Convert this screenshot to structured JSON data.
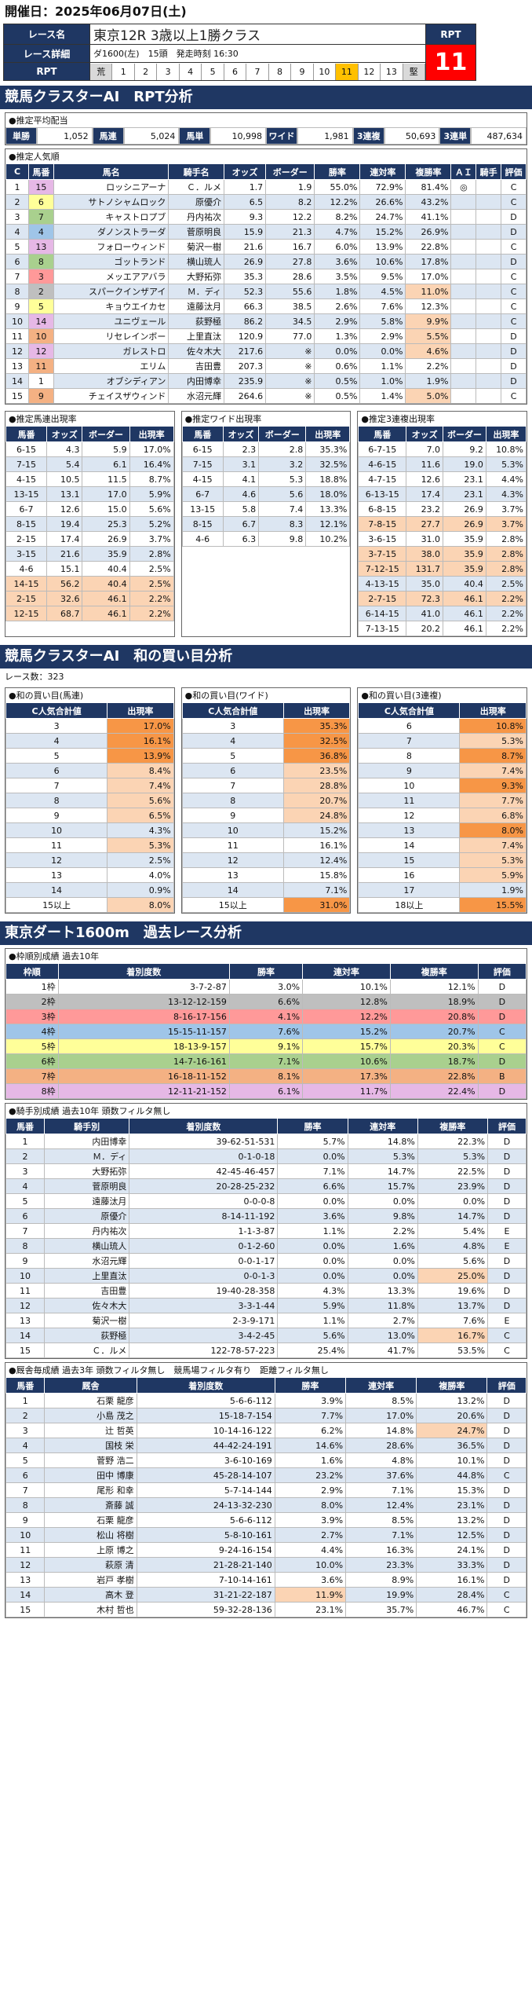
{
  "header": {
    "date_label": "開催日：2025年06月07日(土)"
  },
  "race": {
    "name_label": "レース名",
    "name": "東京12R 3歳以上1勝クラス",
    "detail_label": "レース詳細",
    "detail": "ダ1600(左)　15頭　発走時刻 16:30",
    "rpt_label": "RPT",
    "rpt_value": "11",
    "rpt_head": "RPT",
    "numbers": [
      "荒",
      "1",
      "2",
      "3",
      "4",
      "5",
      "6",
      "7",
      "8",
      "9",
      "10",
      "11",
      "12",
      "13",
      "堅"
    ],
    "selected_number": "11"
  },
  "rpt_section": {
    "title": "競馬クラスターAI　RPT分析",
    "payout_title": "●推定平均配当",
    "payouts": [
      {
        "k": "単勝",
        "v": "1,052"
      },
      {
        "k": "馬連",
        "v": "5,024"
      },
      {
        "k": "馬単",
        "v": "10,998"
      },
      {
        "k": "ワイド",
        "v": "1,981"
      },
      {
        "k": "3連複",
        "v": "50,693"
      },
      {
        "k": "3連単",
        "v": "487,634"
      }
    ],
    "popular_title": "●推定人気順",
    "popular_headers": [
      "C",
      "馬番",
      "馬名",
      "騎手名",
      "オッズ",
      "ボーダー",
      "勝率",
      "連対率",
      "複勝率",
      "ＡＩ",
      "騎手",
      "評価"
    ],
    "popular_rows": [
      [
        "1",
        "15",
        "ロッシニアーナ",
        "Ｃ．ルメ",
        "1.7",
        "1.9",
        "55.0%",
        "72.9%",
        "81.4%",
        "◎",
        "",
        "C"
      ],
      [
        "2",
        "6",
        "サトノシャムロック",
        "原優介",
        "6.5",
        "8.2",
        "12.2%",
        "26.6%",
        "43.2%",
        "",
        "",
        "C"
      ],
      [
        "3",
        "7",
        "キャストロプブ",
        "丹内祐次",
        "9.3",
        "12.2",
        "8.2%",
        "24.7%",
        "41.1%",
        "",
        "",
        "D"
      ],
      [
        "4",
        "4",
        "ダノンストラーダ",
        "菅原明良",
        "15.9",
        "21.3",
        "4.7%",
        "15.2%",
        "26.9%",
        "",
        "",
        "D"
      ],
      [
        "5",
        "13",
        "フォローウィンド",
        "菊沢一樹",
        "21.6",
        "16.7",
        "6.0%",
        "13.9%",
        "22.8%",
        "",
        "",
        "C"
      ],
      [
        "6",
        "8",
        "ゴットランド",
        "横山琉人",
        "26.9",
        "27.8",
        "3.6%",
        "10.6%",
        "17.8%",
        "",
        "",
        "D"
      ],
      [
        "7",
        "3",
        "メッエアアバラ",
        "大野拓弥",
        "35.3",
        "28.6",
        "3.5%",
        "9.5%",
        "17.0%",
        "",
        "",
        "C"
      ],
      [
        "8",
        "2",
        "スパークインザアイ",
        "Ｍ．ディ",
        "52.3",
        "55.6",
        "1.8%",
        "4.5%",
        "11.0%",
        "",
        "",
        "C"
      ],
      [
        "9",
        "5",
        "キョウエイカセ",
        "遠藤汰月",
        "66.3",
        "38.5",
        "2.6%",
        "7.6%",
        "12.3%",
        "",
        "",
        "C"
      ],
      [
        "10",
        "14",
        "ユニヴェール",
        "荻野極",
        "86.2",
        "34.5",
        "2.9%",
        "5.8%",
        "9.9%",
        "",
        "",
        "C"
      ],
      [
        "11",
        "10",
        "リセレインボー",
        "上里直汰",
        "120.9",
        "77.0",
        "1.3%",
        "2.9%",
        "5.5%",
        "",
        "",
        "D"
      ],
      [
        "12",
        "12",
        "ガレストロ",
        "佐々木大",
        "217.6",
        "※",
        "0.0%",
        "0.0%",
        "4.6%",
        "",
        "",
        "D"
      ],
      [
        "13",
        "11",
        "エリム",
        "吉田豊",
        "207.3",
        "※",
        "0.6%",
        "1.1%",
        "2.2%",
        "",
        "",
        "D"
      ],
      [
        "14",
        "1",
        "オブシディアン",
        "内田博幸",
        "235.9",
        "※",
        "0.5%",
        "1.0%",
        "1.9%",
        "",
        "",
        "D"
      ],
      [
        "15",
        "9",
        "チェイスザウィンド",
        "水沼元輝",
        "264.6",
        "※",
        "0.5%",
        "1.4%",
        "5.0%",
        "",
        "",
        "C"
      ]
    ],
    "umaren_title": "●推定馬連出現率",
    "umaren_headers": [
      "馬番",
      "オッズ",
      "ボーダー",
      "出現率"
    ],
    "umaren": [
      [
        "6-15",
        "4.3",
        "5.9",
        "17.0%"
      ],
      [
        "7-15",
        "5.4",
        "6.1",
        "16.4%"
      ],
      [
        "4-15",
        "10.5",
        "11.5",
        "8.7%"
      ],
      [
        "13-15",
        "13.1",
        "17.0",
        "5.9%"
      ],
      [
        "6-7",
        "12.6",
        "15.0",
        "5.6%"
      ],
      [
        "8-15",
        "19.4",
        "25.3",
        "5.2%"
      ],
      [
        "2-15",
        "17.4",
        "26.9",
        "3.7%"
      ],
      [
        "3-15",
        "21.6",
        "35.9",
        "2.8%"
      ],
      [
        "4-6",
        "15.1",
        "40.4",
        "2.5%"
      ],
      [
        "14-15",
        "56.2",
        "40.4",
        "2.5%"
      ],
      [
        "2-15",
        "32.6",
        "46.1",
        "2.2%"
      ],
      [
        "12-15",
        "68.7",
        "46.1",
        "2.2%"
      ]
    ],
    "wide_title": "●推定ワイド出現率",
    "wide_headers": [
      "馬番",
      "オッズ",
      "ボーダー",
      "出現率"
    ],
    "wide": [
      [
        "6-15",
        "2.3",
        "2.8",
        "35.3%"
      ],
      [
        "7-15",
        "3.1",
        "3.2",
        "32.5%"
      ],
      [
        "4-15",
        "4.1",
        "5.3",
        "18.8%"
      ],
      [
        "6-7",
        "4.6",
        "5.6",
        "18.0%"
      ],
      [
        "13-15",
        "5.8",
        "7.4",
        "13.3%"
      ],
      [
        "8-15",
        "6.7",
        "8.3",
        "12.1%"
      ],
      [
        "4-6",
        "6.3",
        "9.8",
        "10.2%"
      ]
    ],
    "trio_title": "●推定3連複出現率",
    "trio_headers": [
      "馬番",
      "オッズ",
      "ボーダー",
      "出現率"
    ],
    "trio": [
      [
        "6-7-15",
        "7.0",
        "9.2",
        "10.8%"
      ],
      [
        "4-6-15",
        "11.6",
        "19.0",
        "5.3%"
      ],
      [
        "4-7-15",
        "12.6",
        "23.1",
        "4.4%"
      ],
      [
        "6-13-15",
        "17.4",
        "23.1",
        "4.3%"
      ],
      [
        "6-8-15",
        "23.2",
        "26.9",
        "3.7%"
      ],
      [
        "7-8-15",
        "27.7",
        "26.9",
        "3.7%"
      ],
      [
        "3-6-15",
        "31.0",
        "35.9",
        "2.8%"
      ],
      [
        "3-7-15",
        "38.0",
        "35.9",
        "2.8%"
      ],
      [
        "7-12-15",
        "131.7",
        "35.9",
        "2.8%"
      ],
      [
        "4-13-15",
        "35.0",
        "40.4",
        "2.5%"
      ],
      [
        "2-7-15",
        "72.3",
        "46.1",
        "2.2%"
      ],
      [
        "6-14-15",
        "41.0",
        "46.1",
        "2.2%"
      ],
      [
        "7-13-15",
        "20.2",
        "46.1",
        "2.2%"
      ]
    ]
  },
  "wa_section": {
    "title": "競馬クラスターAI　和の買い目分析",
    "race_count": "レース数：323",
    "umaren_title": "●和の買い目(馬連)",
    "wide_title": "●和の買い目(ワイド)",
    "trio_title": "●和の買い目(3連複)",
    "col1": "C人気合計値",
    "col2": "出現率",
    "umaren": [
      [
        "3",
        "17.0%"
      ],
      [
        "4",
        "16.1%"
      ],
      [
        "5",
        "13.9%"
      ],
      [
        "6",
        "8.4%"
      ],
      [
        "7",
        "7.4%"
      ],
      [
        "8",
        "5.6%"
      ],
      [
        "9",
        "6.5%"
      ],
      [
        "10",
        "4.3%"
      ],
      [
        "11",
        "5.3%"
      ],
      [
        "12",
        "2.5%"
      ],
      [
        "13",
        "4.0%"
      ],
      [
        "14",
        "0.9%"
      ],
      [
        "15以上",
        "8.0%"
      ]
    ],
    "wide": [
      [
        "3",
        "35.3%"
      ],
      [
        "4",
        "32.5%"
      ],
      [
        "5",
        "36.8%"
      ],
      [
        "6",
        "23.5%"
      ],
      [
        "7",
        "28.8%"
      ],
      [
        "8",
        "20.7%"
      ],
      [
        "9",
        "24.8%"
      ],
      [
        "10",
        "15.2%"
      ],
      [
        "11",
        "16.1%"
      ],
      [
        "12",
        "12.4%"
      ],
      [
        "13",
        "15.8%"
      ],
      [
        "14",
        "7.1%"
      ],
      [
        "15以上",
        "31.0%"
      ]
    ],
    "trio": [
      [
        "6",
        "10.8%"
      ],
      [
        "7",
        "5.3%"
      ],
      [
        "8",
        "8.7%"
      ],
      [
        "9",
        "7.4%"
      ],
      [
        "10",
        "9.3%"
      ],
      [
        "11",
        "7.7%"
      ],
      [
        "12",
        "6.8%"
      ],
      [
        "13",
        "8.0%"
      ],
      [
        "14",
        "7.4%"
      ],
      [
        "15",
        "5.3%"
      ],
      [
        "16",
        "5.9%"
      ],
      [
        "17",
        "1.9%"
      ],
      [
        "18以上",
        "15.5%"
      ]
    ]
  },
  "past_section": {
    "title": "東京ダート1600m　過去レース分析",
    "frame_title": "●枠順別成績 過去10年",
    "frame_headers": [
      "枠順",
      "着別度数",
      "勝率",
      "連対率",
      "複勝率",
      "評価"
    ],
    "frames": [
      [
        "1枠",
        "3-7-2-87",
        "3.0%",
        "10.1%",
        "12.1%",
        "D"
      ],
      [
        "2枠",
        "13-12-12-159",
        "6.6%",
        "12.8%",
        "18.9%",
        "D"
      ],
      [
        "3枠",
        "8-16-17-156",
        "4.1%",
        "12.2%",
        "20.8%",
        "D"
      ],
      [
        "4枠",
        "15-15-11-157",
        "7.6%",
        "15.2%",
        "20.7%",
        "C"
      ],
      [
        "5枠",
        "18-13-9-157",
        "9.1%",
        "15.7%",
        "20.3%",
        "C"
      ],
      [
        "6枠",
        "14-7-16-161",
        "7.1%",
        "10.6%",
        "18.7%",
        "D"
      ],
      [
        "7枠",
        "16-18-11-152",
        "8.1%",
        "17.3%",
        "22.8%",
        "B"
      ],
      [
        "8枠",
        "12-11-21-152",
        "6.1%",
        "11.7%",
        "22.4%",
        "D"
      ]
    ],
    "jockey_title": "●騎手別成績 過去10年 頭数フィルタ無し",
    "jockey_headers": [
      "馬番",
      "騎手別",
      "着別度数",
      "勝率",
      "連対率",
      "複勝率",
      "評価"
    ],
    "jockeys": [
      [
        "1",
        "内田博幸",
        "39-62-51-531",
        "5.7%",
        "14.8%",
        "22.3%",
        "D"
      ],
      [
        "2",
        "Ｍ．ディ",
        "0-1-0-18",
        "0.0%",
        "5.3%",
        "5.3%",
        "D"
      ],
      [
        "3",
        "大野拓弥",
        "42-45-46-457",
        "7.1%",
        "14.7%",
        "22.5%",
        "D"
      ],
      [
        "4",
        "菅原明良",
        "20-28-25-232",
        "6.6%",
        "15.7%",
        "23.9%",
        "D"
      ],
      [
        "5",
        "遠藤汰月",
        "0-0-0-8",
        "0.0%",
        "0.0%",
        "0.0%",
        "D"
      ],
      [
        "6",
        "原優介",
        "8-14-11-192",
        "3.6%",
        "9.8%",
        "14.7%",
        "D"
      ],
      [
        "7",
        "丹内祐次",
        "1-1-3-87",
        "1.1%",
        "2.2%",
        "5.4%",
        "E"
      ],
      [
        "8",
        "横山琉人",
        "0-1-2-60",
        "0.0%",
        "1.6%",
        "4.8%",
        "E"
      ],
      [
        "9",
        "水沼元輝",
        "0-0-1-17",
        "0.0%",
        "0.0%",
        "5.6%",
        "D"
      ],
      [
        "10",
        "上里直汰",
        "0-0-1-3",
        "0.0%",
        "0.0%",
        "25.0%",
        "D"
      ],
      [
        "11",
        "吉田豊",
        "19-40-28-358",
        "4.3%",
        "13.3%",
        "19.6%",
        "D"
      ],
      [
        "12",
        "佐々木大",
        "3-3-1-44",
        "5.9%",
        "11.8%",
        "13.7%",
        "D"
      ],
      [
        "13",
        "菊沢一樹",
        "2-3-9-171",
        "1.1%",
        "2.7%",
        "7.6%",
        "E"
      ],
      [
        "14",
        "荻野極",
        "3-4-2-45",
        "5.6%",
        "13.0%",
        "16.7%",
        "C"
      ],
      [
        "15",
        "Ｃ．ルメ",
        "122-78-57-223",
        "25.4%",
        "41.7%",
        "53.5%",
        "C"
      ]
    ],
    "trainer_title": "●厩舎毎成績 過去3年 頭数フィルタ無し　競馬場フィルタ有り　距離フィルタ無し",
    "trainer_headers": [
      "馬番",
      "厩舎",
      "着別度数",
      "勝率",
      "連対率",
      "複勝率",
      "評価"
    ],
    "trainers": [
      [
        "1",
        "石栗 龍彦",
        "5-6-6-112",
        "3.9%",
        "8.5%",
        "13.2%",
        "D"
      ],
      [
        "2",
        "小島 茂之",
        "15-18-7-154",
        "7.7%",
        "17.0%",
        "20.6%",
        "D"
      ],
      [
        "3",
        "辻 哲英",
        "10-14-16-122",
        "6.2%",
        "14.8%",
        "24.7%",
        "D"
      ],
      [
        "4",
        "国枝 栄",
        "44-42-24-191",
        "14.6%",
        "28.6%",
        "36.5%",
        "D"
      ],
      [
        "5",
        "菅野 浩二",
        "3-6-10-169",
        "1.6%",
        "4.8%",
        "10.1%",
        "D"
      ],
      [
        "6",
        "田中 博康",
        "45-28-14-107",
        "23.2%",
        "37.6%",
        "44.8%",
        "C"
      ],
      [
        "7",
        "尾形 和幸",
        "5-7-14-144",
        "2.9%",
        "7.1%",
        "15.3%",
        "D"
      ],
      [
        "8",
        "斎藤 誠",
        "24-13-32-230",
        "8.0%",
        "12.4%",
        "23.1%",
        "D"
      ],
      [
        "9",
        "石栗 龍彦",
        "5-6-6-112",
        "3.9%",
        "8.5%",
        "13.2%",
        "D"
      ],
      [
        "10",
        "松山 将樹",
        "5-8-10-161",
        "2.7%",
        "7.1%",
        "12.5%",
        "D"
      ],
      [
        "11",
        "上原 博之",
        "9-24-16-154",
        "4.4%",
        "16.3%",
        "24.1%",
        "D"
      ],
      [
        "12",
        "萩原 清",
        "21-28-21-140",
        "10.0%",
        "23.3%",
        "33.3%",
        "D"
      ],
      [
        "13",
        "岩戸 孝樹",
        "7-10-14-161",
        "3.6%",
        "8.9%",
        "16.1%",
        "D"
      ],
      [
        "14",
        "高木 登",
        "31-21-22-187",
        "11.9%",
        "19.9%",
        "28.4%",
        "C"
      ],
      [
        "15",
        "木村 哲也",
        "59-32-28-136",
        "23.1%",
        "35.7%",
        "46.7%",
        "C"
      ]
    ]
  }
}
